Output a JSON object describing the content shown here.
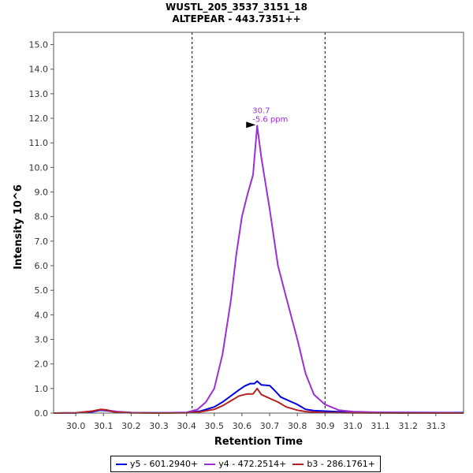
{
  "chart_data": {
    "type": "line",
    "title": "WUSTL_205_3537_3151_18",
    "subtitle": "ALTEPEAR - 443.7351++",
    "xlabel": "Retention Time",
    "ylabel": "Intensity 10^6",
    "xlim": [
      29.92,
      31.4
    ],
    "ylim": [
      0,
      15.5
    ],
    "x_ticks": [
      "30.0",
      "30.1",
      "30.2",
      "30.3",
      "30.4",
      "30.5",
      "30.6",
      "30.7",
      "30.8",
      "30.9",
      "31.0",
      "31.1",
      "31.2",
      "31.3"
    ],
    "y_ticks": [
      "0.0",
      "1.0",
      "2.0",
      "3.0",
      "4.0",
      "5.0",
      "6.0",
      "7.0",
      "8.0",
      "9.0",
      "10.0",
      "11.0",
      "12.0",
      "13.0",
      "14.0",
      "15.0"
    ],
    "boundaries": [
      30.42,
      30.9
    ],
    "peak_annotation": {
      "x": 30.655,
      "y": 11.7,
      "rt_label": "30.7",
      "ppm_label": "-5.6 ppm",
      "color": "#9B30D9"
    },
    "legend_position": "bottom",
    "series": [
      {
        "name": "y5 - 601.2940+",
        "color": "#0000E0",
        "x": [
          29.92,
          30.0,
          30.06,
          30.09,
          30.11,
          30.14,
          30.2,
          30.3,
          30.4,
          30.45,
          30.5,
          30.53,
          30.56,
          30.59,
          30.61,
          30.63,
          30.645,
          30.655,
          30.67,
          30.7,
          30.72,
          30.74,
          30.78,
          30.8,
          30.83,
          30.86,
          30.9,
          31.0,
          31.1,
          31.2,
          31.3,
          31.4
        ],
        "y": [
          0.0,
          0.01,
          0.05,
          0.12,
          0.1,
          0.05,
          0.02,
          0.01,
          0.02,
          0.08,
          0.25,
          0.45,
          0.7,
          0.95,
          1.1,
          1.2,
          1.2,
          1.3,
          1.15,
          1.12,
          0.9,
          0.65,
          0.45,
          0.35,
          0.15,
          0.1,
          0.08,
          0.03,
          0.03,
          0.02,
          0.02,
          0.02
        ]
      },
      {
        "name": "y4 - 472.2514+",
        "color": "#9B30D9",
        "x": [
          29.92,
          30.0,
          30.06,
          30.09,
          30.11,
          30.15,
          30.2,
          30.3,
          30.4,
          30.44,
          30.47,
          30.5,
          30.53,
          30.56,
          30.58,
          30.6,
          30.62,
          30.64,
          30.655,
          30.67,
          30.7,
          30.73,
          30.76,
          30.8,
          30.83,
          30.86,
          30.9,
          30.95,
          31.0,
          31.1,
          31.2,
          31.3,
          31.4
        ],
        "y": [
          0.0,
          0.01,
          0.08,
          0.14,
          0.12,
          0.06,
          0.02,
          0.01,
          0.03,
          0.15,
          0.45,
          1.0,
          2.4,
          4.6,
          6.5,
          8.0,
          8.9,
          9.7,
          11.7,
          10.4,
          8.3,
          6.0,
          4.7,
          3.0,
          1.6,
          0.75,
          0.35,
          0.12,
          0.06,
          0.03,
          0.03,
          0.02,
          0.01
        ]
      },
      {
        "name": "b3 - 286.1761+",
        "color": "#B22222",
        "x": [
          29.92,
          30.0,
          30.06,
          30.09,
          30.11,
          30.14,
          30.2,
          30.3,
          30.4,
          30.45,
          30.5,
          30.53,
          30.56,
          30.59,
          30.62,
          30.64,
          30.655,
          30.67,
          30.7,
          30.73,
          30.76,
          30.8,
          30.83,
          30.86,
          30.9,
          31.0,
          31.2,
          31.4
        ],
        "y": [
          0.0,
          0.01,
          0.08,
          0.15,
          0.13,
          0.04,
          0.01,
          0.0,
          0.01,
          0.05,
          0.15,
          0.3,
          0.5,
          0.7,
          0.78,
          0.78,
          1.0,
          0.75,
          0.6,
          0.45,
          0.25,
          0.12,
          0.06,
          0.04,
          0.02,
          0.01,
          0.0,
          0.0
        ]
      }
    ]
  }
}
